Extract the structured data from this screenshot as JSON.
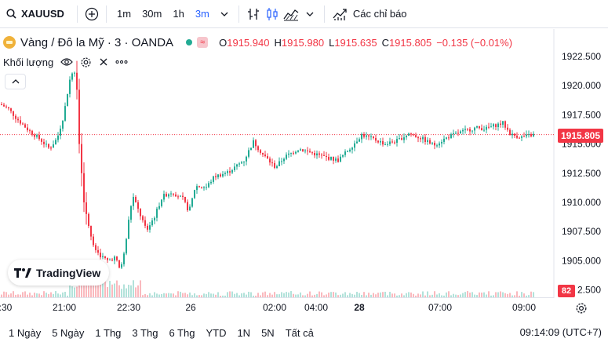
{
  "toolbar": {
    "symbol": "XAUUSD",
    "timeframes": [
      "1m",
      "30m",
      "1h",
      "3m"
    ],
    "active_timeframe": "3m",
    "indicators_label": "Các chỉ báo"
  },
  "legend": {
    "title": "Vàng / Đô la Mỹ · 3 · OANDA",
    "open_key": "O",
    "open": "1915.940",
    "high_key": "H",
    "high": "1915.980",
    "low_key": "L",
    "low": "1915.635",
    "close_key": "C",
    "close": "1915.805",
    "change": "−0.135 (−0.01%)",
    "badge": "≈"
  },
  "volume_pane": {
    "label": "Khối lượng"
  },
  "price_axis": {
    "labels": [
      "1922.500",
      "1920.000",
      "1917.500",
      "1915.000",
      "1912.500",
      "1910.000",
      "1907.500",
      "1905.000",
      "1902.500"
    ],
    "last_price": "1915.805",
    "last_volume": "82"
  },
  "time_axis": {
    "labels": [
      ":30",
      "21:00",
      "22:30",
      "26",
      "02:00",
      "04:00",
      "28",
      "07:00",
      "09:00"
    ]
  },
  "ranges": [
    "1 Ngày",
    "5 Ngày",
    "1 Thg",
    "3 Thg",
    "6 Thg",
    "YTD",
    "1N",
    "5N",
    "Tất cả"
  ],
  "clock": "09:14:09 (UTC+7)",
  "branding": "TradingView",
  "colors": {
    "up": "#22ab94",
    "down": "#f23645",
    "accent": "#2962ff"
  }
}
